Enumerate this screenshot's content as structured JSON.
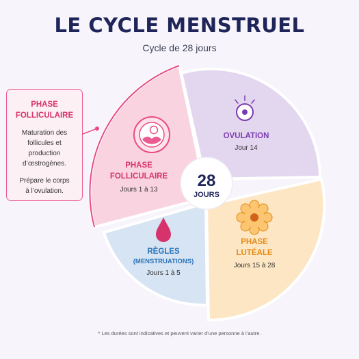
{
  "header": {
    "title": "LE CYCLE MENSTRUEL",
    "subtitle": "Cycle de 28 jours"
  },
  "center": {
    "number": "28",
    "unit": "JOURS"
  },
  "phases": {
    "follicular": {
      "name_line1": "PHASE",
      "name_line2": "FOLLICULAIRE",
      "days": "Jours 1 à 13",
      "color": "#f9d3df",
      "accent": "#d6336c",
      "icon": "follicle-icon"
    },
    "ovulation": {
      "name": "OVULATION",
      "days": "Jour 14",
      "color": "#e3d7f0",
      "accent": "#7d3cae",
      "icon": "ovum-icon"
    },
    "luteal": {
      "name_line1": "PHASE",
      "name_line2": "LUTÉALE",
      "days": "Jours 15 à 28",
      "color": "#fde6c4",
      "accent": "#e38a12",
      "icon": "corpus-luteum-icon"
    },
    "menstruation": {
      "name_line1": "RÈGLES",
      "name_line2": "(MENSTRUATIONS)",
      "days": "Jours 1 à 5",
      "color": "#d6e4f3",
      "accent": "#2a73b8",
      "icon": "blood-drop-icon"
    }
  },
  "callout": {
    "title_line1": "PHASE",
    "title_line2": "FOLLICULAIRE",
    "text1": [
      "Maturation des",
      "follicules et",
      "production",
      "d’œstrogènes."
    ],
    "text2": [
      "Prépare le corps",
      "à l’ovulation."
    ]
  },
  "footnote": "* Les durées sont indicatives et peuvent varier d’une personne à l’autre."
}
